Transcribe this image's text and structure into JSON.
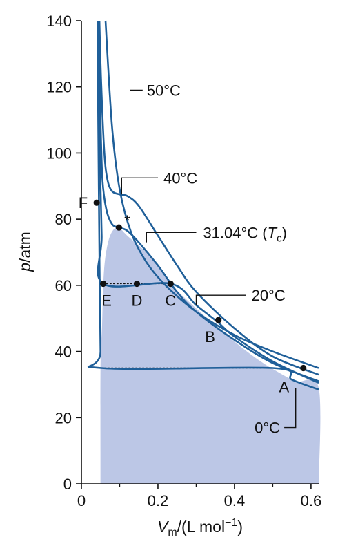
{
  "chart_data": {
    "type": "line",
    "title": "",
    "xlabel": {
      "main": "V",
      "sub": "m",
      "rest": "/(L mol",
      "sup": "−1",
      "close": ")"
    },
    "ylabel": {
      "italic": "p",
      "rest": "/atm"
    },
    "xlim": [
      0,
      0.62
    ],
    "ylim": [
      0,
      140
    ],
    "xticks": [
      0,
      0.2,
      0.4,
      0.6
    ],
    "xtick_labels": [
      "0",
      "0.2",
      "0.4",
      "0.6"
    ],
    "xticks_minor": [
      0.1,
      0.3,
      0.5
    ],
    "yticks": [
      0,
      20,
      40,
      60,
      80,
      100,
      120,
      140
    ],
    "ytick_labels": [
      "0",
      "20",
      "40",
      "60",
      "80",
      "100",
      "120",
      "140"
    ],
    "grid": false,
    "colors": {
      "curve": "#1f5f99",
      "region": "#bcc7e6",
      "marker": "#111111",
      "text": "#111111"
    },
    "series": [
      {
        "name": "50°C",
        "points": [
          [
            0.063,
            140
          ],
          [
            0.08,
            108
          ],
          [
            0.1,
            89
          ],
          [
            0.13,
            76
          ],
          [
            0.17,
            67
          ],
          [
            0.22,
            60
          ],
          [
            0.3,
            52
          ],
          [
            0.4,
            45
          ],
          [
            0.5,
            40
          ],
          [
            0.62,
            35
          ]
        ]
      },
      {
        "name": "40°C",
        "points": [
          [
            0.047,
            140
          ],
          [
            0.052,
            120
          ],
          [
            0.06,
            100
          ],
          [
            0.068,
            92
          ],
          [
            0.08,
            88.5
          ],
          [
            0.1,
            87.5
          ],
          [
            0.12,
            87
          ],
          [
            0.15,
            84
          ],
          [
            0.2,
            75
          ],
          [
            0.25,
            66
          ],
          [
            0.3,
            58
          ],
          [
            0.4,
            47
          ],
          [
            0.5,
            38.5
          ],
          [
            0.62,
            33
          ]
        ]
      },
      {
        "name": "31.04°C (Tc)",
        "points": [
          [
            0.045,
            140
          ],
          [
            0.05,
            110
          ],
          [
            0.055,
            92
          ],
          [
            0.065,
            83
          ],
          [
            0.08,
            78.5
          ],
          [
            0.098,
            77.5
          ],
          [
            0.12,
            76.5
          ],
          [
            0.15,
            73
          ],
          [
            0.2,
            66
          ],
          [
            0.25,
            58
          ],
          [
            0.3,
            52
          ],
          [
            0.4,
            43.5
          ],
          [
            0.5,
            36.5
          ],
          [
            0.62,
            31
          ]
        ]
      },
      {
        "name": "20°C",
        "points": [
          [
            0.043,
            140
          ],
          [
            0.048,
            100
          ],
          [
            0.053,
            75
          ],
          [
            0.057,
            60.5
          ],
          [
            0.233,
            60.5
          ],
          [
            0.3,
            54
          ],
          [
            0.355,
            49
          ],
          [
            0.4,
            44.5
          ],
          [
            0.5,
            37
          ],
          [
            0.62,
            30.5
          ]
        ]
      },
      {
        "name": "0°C",
        "points": [
          [
            0.042,
            140
          ],
          [
            0.044,
            110
          ],
          [
            0.047,
            70
          ],
          [
            0.05,
            40
          ],
          [
            0.052,
            35
          ],
          [
            0.5,
            35
          ],
          [
            0.55,
            31.5
          ],
          [
            0.62,
            28.5
          ]
        ]
      }
    ],
    "coexistence_region": [
      [
        0.05,
        0
      ],
      [
        0.05,
        35
      ],
      [
        0.054,
        48
      ],
      [
        0.057,
        60
      ],
      [
        0.062,
        68
      ],
      [
        0.072,
        74
      ],
      [
        0.085,
        77
      ],
      [
        0.098,
        77.5
      ],
      [
        0.12,
        75
      ],
      [
        0.16,
        71
      ],
      [
        0.2,
        66
      ],
      [
        0.233,
        60.5
      ],
      [
        0.3,
        53
      ],
      [
        0.355,
        47.5
      ],
      [
        0.4,
        43
      ],
      [
        0.45,
        38.5
      ],
      [
        0.5,
        34.7
      ],
      [
        0.56,
        31
      ],
      [
        0.62,
        29
      ],
      [
        0.62,
        0
      ]
    ],
    "tie_lines": [
      {
        "x": [
          0.057,
          0.233
        ],
        "y": [
          60.5,
          60.5
        ]
      },
      {
        "x": [
          0.052,
          0.5
        ],
        "y": [
          35,
          35
        ]
      }
    ],
    "points": [
      {
        "label": "F",
        "x": 0.04,
        "y": 85
      },
      {
        "label": "*",
        "x": 0.098,
        "y": 77.5
      },
      {
        "label": "E",
        "x": 0.057,
        "y": 60.5
      },
      {
        "label": "D",
        "x": 0.145,
        "y": 60.5
      },
      {
        "label": "C",
        "x": 0.233,
        "y": 60.5
      },
      {
        "label": "B",
        "x": 0.358,
        "y": 49.5
      },
      {
        "label": "A",
        "x": 0.58,
        "y": 35
      }
    ],
    "callouts": [
      {
        "text": "50°C",
        "label": "50°C",
        "x": 0.127,
        "y": 119,
        "x2": 0.16,
        "y2": 119
      },
      {
        "text": "40°C",
        "label": "40°C",
        "x": 0.105,
        "y": 87.5,
        "y_top": 92.5,
        "x2": 0.2,
        "y2": 92.5
      },
      {
        "text": "31.04°C (",
        "italic": "T",
        "sub": "c",
        "close": ")",
        "x": 0.17,
        "y": 73,
        "y_top": 76,
        "x2": 0.3,
        "y2": 76
      },
      {
        "text": "20°C",
        "label": "20°C",
        "x": 0.3,
        "y": 54,
        "y_top": 57,
        "x2": 0.43,
        "y2": 57
      },
      {
        "text": "0°C",
        "label": "0°C",
        "x": 0.56,
        "y": 29,
        "y_bottom": 17,
        "x2": 0.53,
        "y2": 17
      }
    ]
  }
}
